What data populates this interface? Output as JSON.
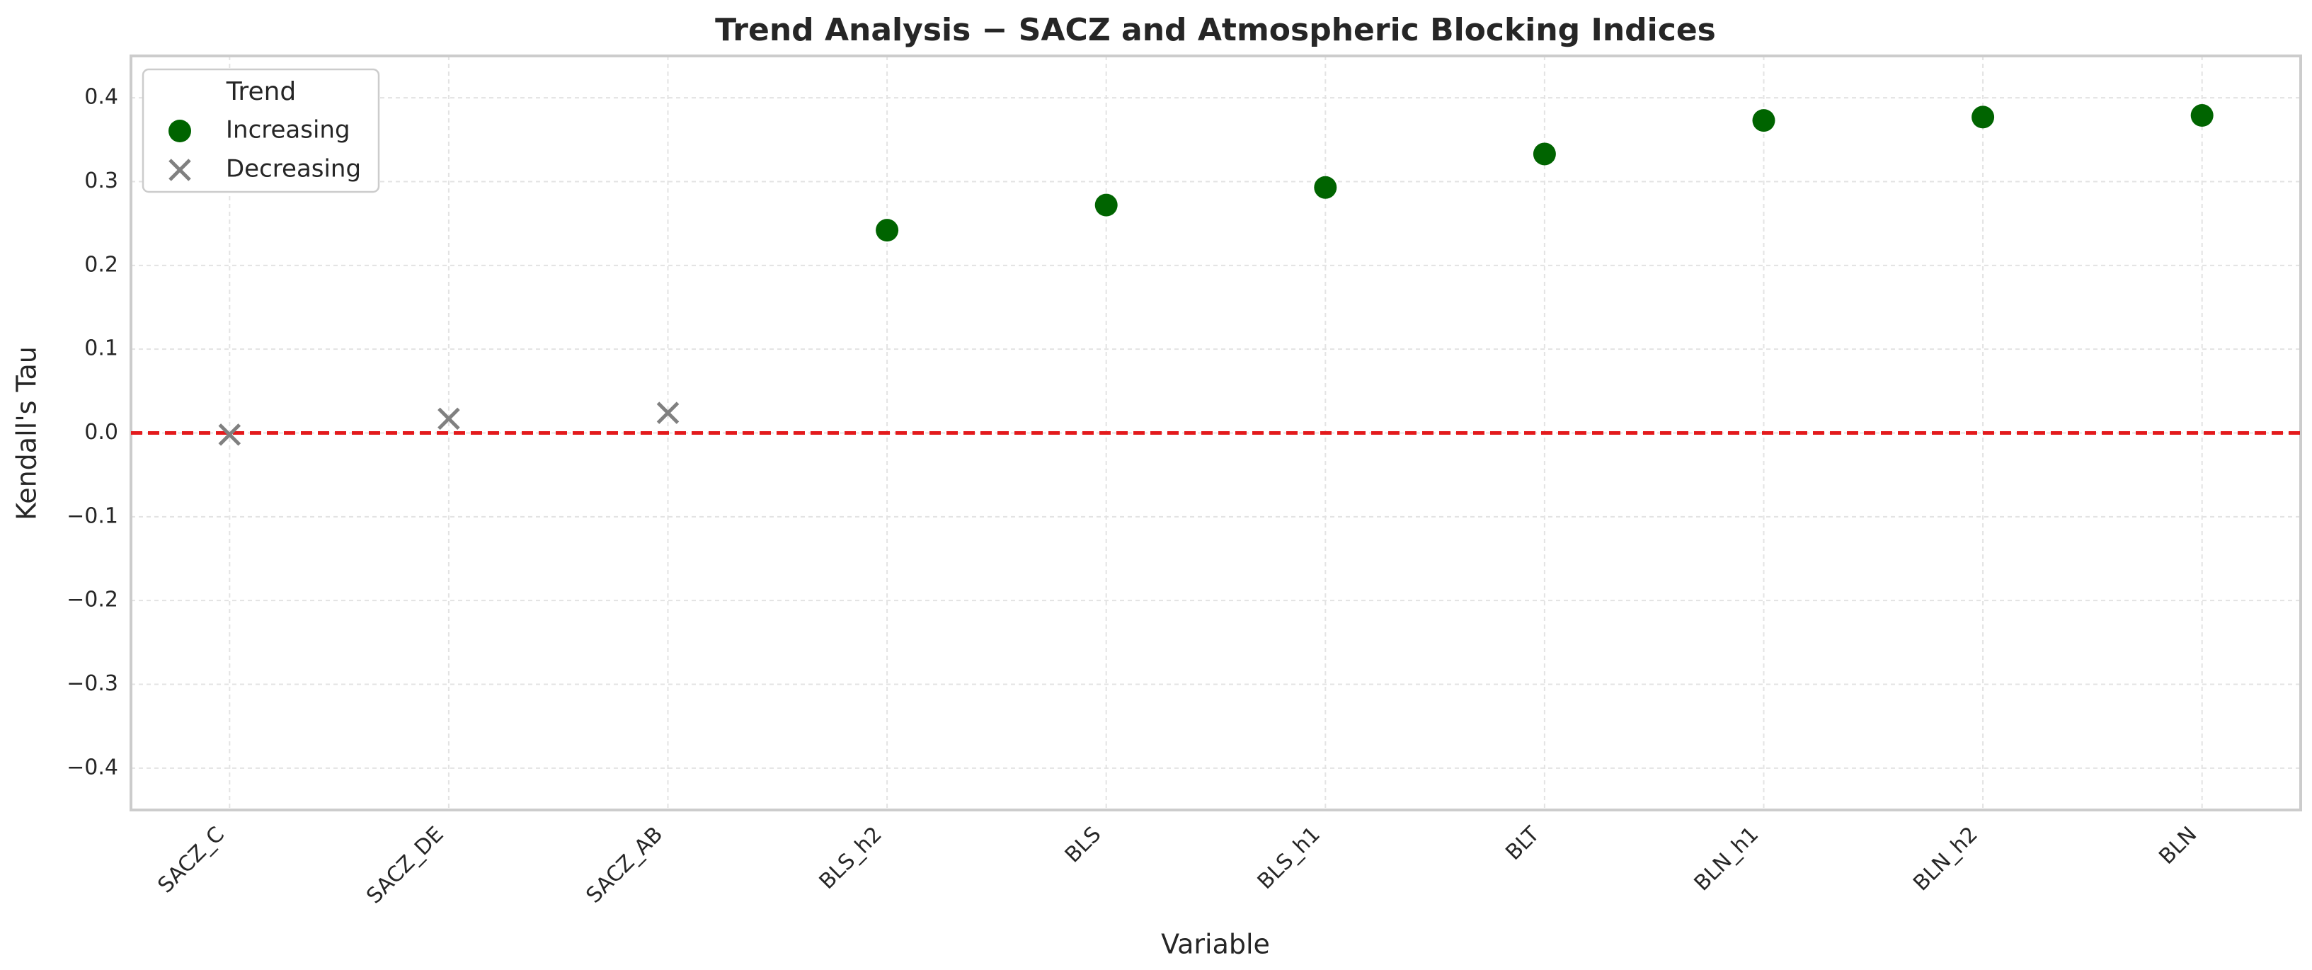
{
  "chart_data": {
    "type": "scatter",
    "title": "Trend Analysis − SACZ and Atmospheric Blocking Indices",
    "x_label": "Variable",
    "y_label": "Kendall's Tau",
    "categories": [
      "SACZ_C",
      "SACZ_DE",
      "SACZ_AB",
      "BLS_h2",
      "BLS",
      "BLS_h1",
      "BLT",
      "BLN_h1",
      "BLN_h2",
      "BLN"
    ],
    "series": [
      {
        "name": "Increasing",
        "color": "#006400",
        "marker": "o",
        "values": [
          null,
          null,
          null,
          0.242,
          0.272,
          0.293,
          0.333,
          0.373,
          0.377,
          0.379
        ]
      },
      {
        "name": "Decreasing",
        "color": "#808080",
        "marker": "x",
        "values": [
          -0.002,
          0.017,
          0.024,
          null,
          null,
          null,
          null,
          null,
          null,
          null
        ]
      }
    ],
    "legend_title": "Trend",
    "legend": "upper left",
    "ylim": [
      -0.45,
      0.45
    ],
    "yticks": [
      {
        "value": -0.4,
        "label": "−0.4"
      },
      {
        "value": -0.3,
        "label": "−0.3"
      },
      {
        "value": -0.2,
        "label": "−0.2"
      },
      {
        "value": -0.1,
        "label": "−0.1"
      },
      {
        "value": 0,
        "label": "0.0"
      },
      0.1,
      0.2,
      0.3,
      0.4
    ],
    "reference_line": {
      "value": 0,
      "color": "#e31a1c"
    },
    "grid": true
  }
}
